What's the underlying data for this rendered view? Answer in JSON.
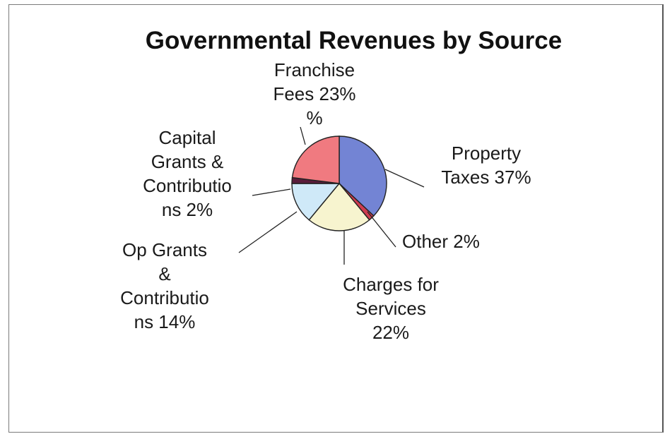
{
  "chart_data": {
    "type": "pie",
    "title": "Governmental Revenues by Source",
    "slices": [
      {
        "label_lines": [
          "Property",
          "Taxes  37%"
        ],
        "value": 37,
        "color": "#7384d4"
      },
      {
        "label_lines": [
          "Other  2%"
        ],
        "value": 2,
        "color": "#cf3c50"
      },
      {
        "label_lines": [
          "Charges for",
          "Services",
          "22%"
        ],
        "value": 22,
        "color": "#f7f4cf"
      },
      {
        "label_lines": [
          "Op Grants",
          "&",
          "Contributio",
          "ns  14%"
        ],
        "value": 14,
        "color": "#cfe9f8"
      },
      {
        "label_lines": [
          "Capital",
          "Grants &",
          "Contributio",
          "ns  2%"
        ],
        "value": 2,
        "color": "#5a1c3a"
      },
      {
        "label_lines": [
          "Franchise",
          "Fees  23%",
          "%"
        ],
        "value": 23,
        "color": "#f07a80"
      }
    ],
    "start_angle_deg": 0,
    "direction": "clockwise",
    "legend": "none"
  }
}
